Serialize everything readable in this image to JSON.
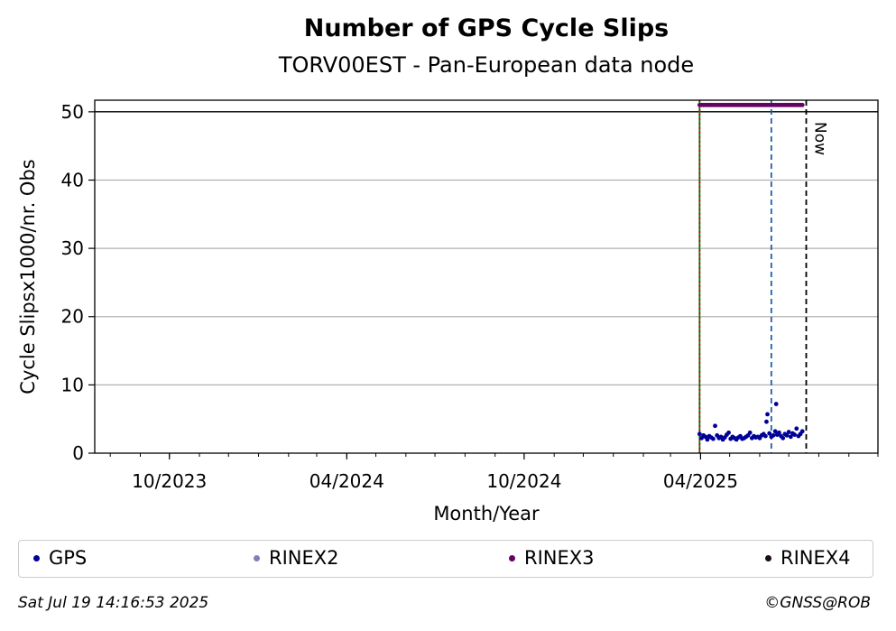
{
  "chart_data": {
    "type": "scatter",
    "title": "Number of GPS Cycle Slips",
    "subtitle": "TORV00EST - Pan-European data node",
    "xlabel": "Month/Year",
    "ylabel": "Cycle Slipsx1000/nr. Obs",
    "x_ticks": [
      {
        "label": "10/2023",
        "date": "2023-10-01"
      },
      {
        "label": "04/2024",
        "date": "2024-04-01"
      },
      {
        "label": "10/2024",
        "date": "2024-10-01"
      },
      {
        "label": "04/2025",
        "date": "2025-04-01"
      }
    ],
    "xlim": [
      "2023-07-16",
      "2025-10-01"
    ],
    "ylim": [
      0,
      51.7
    ],
    "y_ticks": [
      0,
      10,
      20,
      30,
      40,
      50
    ],
    "grid": "y",
    "legend_placement": "bottom",
    "limit_line": 50,
    "vlines": [
      {
        "date": "2025-03-31",
        "color": "#008000",
        "style": "solid"
      },
      {
        "date": "2025-03-31",
        "color": "#cc0000",
        "style": "dotted"
      },
      {
        "date": "2025-06-13",
        "color": "#1f5fa8",
        "style": "dashed"
      },
      {
        "date": "2025-07-19",
        "color": "#000000",
        "style": "dashed",
        "label": "Now"
      }
    ],
    "series": [
      {
        "name": "GPS",
        "color": "#000099",
        "x": [
          "2025-03-31",
          "2025-04-02",
          "2025-04-04",
          "2025-04-06",
          "2025-04-08",
          "2025-04-10",
          "2025-04-12",
          "2025-04-14",
          "2025-04-16",
          "2025-04-18",
          "2025-04-20",
          "2025-04-22",
          "2025-04-24",
          "2025-04-26",
          "2025-04-28",
          "2025-04-30",
          "2025-05-02",
          "2025-05-04",
          "2025-05-06",
          "2025-05-08",
          "2025-05-10",
          "2025-05-12",
          "2025-05-14",
          "2025-05-16",
          "2025-05-18",
          "2025-05-20",
          "2025-05-22",
          "2025-05-24",
          "2025-05-26",
          "2025-05-28",
          "2025-05-30",
          "2025-06-01",
          "2025-06-03",
          "2025-06-05",
          "2025-06-07",
          "2025-06-08",
          "2025-06-09",
          "2025-06-11",
          "2025-06-13",
          "2025-06-15",
          "2025-06-17",
          "2025-06-18",
          "2025-06-19",
          "2025-06-21",
          "2025-06-23",
          "2025-06-25",
          "2025-06-27",
          "2025-06-29",
          "2025-07-01",
          "2025-07-03",
          "2025-07-05",
          "2025-07-07",
          "2025-07-09",
          "2025-07-11",
          "2025-07-13",
          "2025-07-15"
        ],
        "y": [
          2.8,
          2.2,
          2.6,
          2.4,
          2.0,
          2.5,
          2.3,
          2.1,
          4.0,
          2.6,
          2.2,
          2.4,
          2.0,
          2.3,
          2.7,
          3.0,
          2.1,
          2.4,
          2.2,
          2.0,
          2.3,
          2.5,
          2.1,
          2.2,
          2.4,
          2.6,
          3.0,
          2.2,
          2.5,
          2.3,
          2.4,
          2.2,
          2.6,
          2.8,
          2.5,
          4.6,
          5.7,
          2.9,
          2.4,
          2.6,
          3.2,
          7.2,
          2.7,
          3.0,
          2.5,
          2.2,
          2.8,
          2.6,
          3.1,
          2.4,
          2.9,
          2.7,
          3.6,
          2.5,
          2.8,
          3.2
        ]
      },
      {
        "name": "RINEX2",
        "color": "#8080c0",
        "x": [],
        "y": []
      },
      {
        "name": "RINEX3",
        "color": "#660066",
        "x": [
          "2025-03-31",
          "2025-04-02",
          "2025-04-04",
          "2025-04-06",
          "2025-04-08",
          "2025-04-10",
          "2025-04-12",
          "2025-04-14",
          "2025-04-16",
          "2025-04-18",
          "2025-04-20",
          "2025-04-22",
          "2025-04-24",
          "2025-04-26",
          "2025-04-28",
          "2025-04-30",
          "2025-05-02",
          "2025-05-04",
          "2025-05-06",
          "2025-05-08",
          "2025-05-10",
          "2025-05-12",
          "2025-05-14",
          "2025-05-16",
          "2025-05-18",
          "2025-05-20",
          "2025-05-22",
          "2025-05-24",
          "2025-05-26",
          "2025-05-28",
          "2025-05-30",
          "2025-06-01",
          "2025-06-03",
          "2025-06-05",
          "2025-06-07",
          "2025-06-09",
          "2025-06-11",
          "2025-06-13",
          "2025-06-15",
          "2025-06-17",
          "2025-06-19",
          "2025-06-21",
          "2025-06-23",
          "2025-06-25",
          "2025-06-27",
          "2025-06-29",
          "2025-07-01",
          "2025-07-03",
          "2025-07-05",
          "2025-07-07",
          "2025-07-09",
          "2025-07-11",
          "2025-07-13",
          "2025-07-15"
        ],
        "y": [
          51,
          51,
          51,
          51,
          51,
          51,
          51,
          51,
          51,
          51,
          51,
          51,
          51,
          51,
          51,
          51,
          51,
          51,
          51,
          51,
          51,
          51,
          51,
          51,
          51,
          51,
          51,
          51,
          51,
          51,
          51,
          51,
          51,
          51,
          51,
          51,
          51,
          51,
          51,
          51,
          51,
          51,
          51,
          51,
          51,
          51,
          51,
          51,
          51,
          51,
          51,
          51,
          51,
          51
        ]
      },
      {
        "name": "RINEX4",
        "color": "#1a0a1a",
        "x": [],
        "y": []
      }
    ]
  },
  "footer": {
    "timestamp": "Sat Jul 19 14:16:53 2025",
    "credit": "©GNSS@ROB"
  }
}
